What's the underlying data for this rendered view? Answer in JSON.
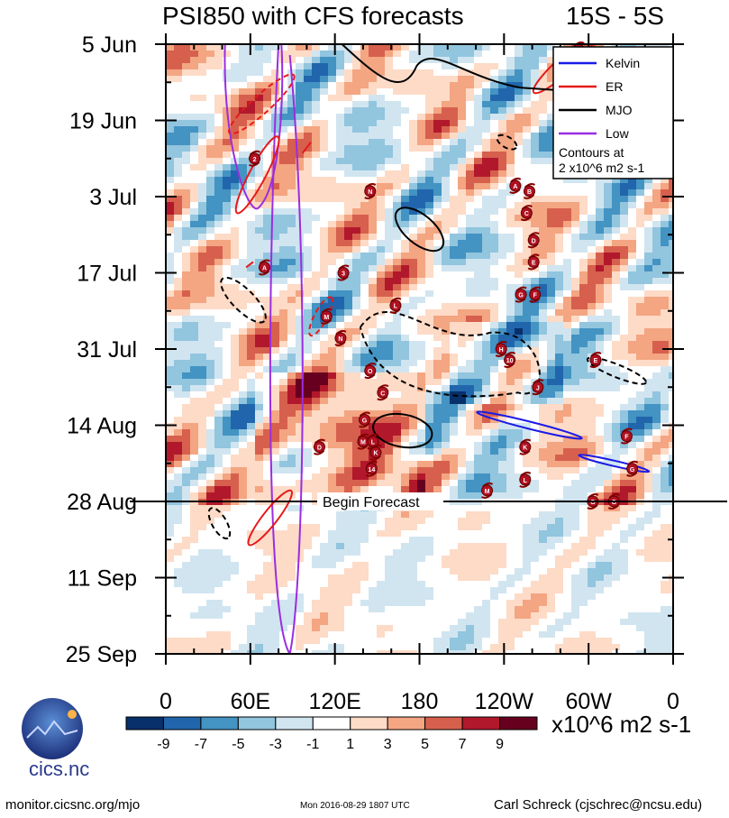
{
  "header": {
    "title": "PSI850 with CFS forecasts",
    "region": "15S - 5S"
  },
  "chart_data": {
    "type": "heatmap",
    "title": "PSI850 with CFS forecasts",
    "subtitle": "15S - 5S",
    "y_ticks": [
      "5 Jun",
      "19 Jun",
      "3 Jul",
      "17 Jul",
      "31 Jul",
      "14 Aug",
      "28 Aug",
      "11 Sep",
      "25 Sep"
    ],
    "y_days": [
      0,
      14,
      28,
      42,
      56,
      70,
      84,
      98,
      112
    ],
    "x_ticks": [
      "0",
      "60E",
      "120E",
      "180",
      "120W",
      "60W",
      "0"
    ],
    "x_lon": [
      0,
      60,
      120,
      180,
      240,
      300,
      360
    ],
    "colorbar": {
      "labels": [
        "-9",
        "-7",
        "-5",
        "-3",
        "-1",
        "1",
        "3",
        "5",
        "7",
        "9"
      ],
      "colors": [
        "#08306b",
        "#2166ac",
        "#4393c3",
        "#92c5de",
        "#d1e5f0",
        "#ffffff",
        "#fddbc7",
        "#f4a582",
        "#d6604d",
        "#b2182b",
        "#67001f"
      ],
      "units": "x10^6 m2 s-1"
    },
    "forecast_marker": {
      "label": "Begin Forecast",
      "day": 84
    },
    "legend": {
      "position": "top-right",
      "entries": [
        {
          "name": "Kelvin",
          "color": "#1a1ae6"
        },
        {
          "name": "ER",
          "color": "#e61a1a"
        },
        {
          "name": "MJO",
          "color": "#000000"
        },
        {
          "name": "Low",
          "color": "#9a2de0"
        }
      ],
      "note_line1": "Contours at",
      "note_line2": "2 x10^6 m2 s-1"
    },
    "storms": [
      {
        "l": "1",
        "lon": 293,
        "day": 1
      },
      {
        "l": "2",
        "lon": 63,
        "day": 21
      },
      {
        "l": "A",
        "lon": 70,
        "day": 41
      },
      {
        "l": "N",
        "lon": 145,
        "day": 27
      },
      {
        "l": "A",
        "lon": 248,
        "day": 26
      },
      {
        "l": "B",
        "lon": 258,
        "day": 27
      },
      {
        "l": "C",
        "lon": 256,
        "day": 31
      },
      {
        "l": "D",
        "lon": 261,
        "day": 36
      },
      {
        "l": "E",
        "lon": 261,
        "day": 40
      },
      {
        "l": "3",
        "lon": 126,
        "day": 42
      },
      {
        "l": "L",
        "lon": 163,
        "day": 48
      },
      {
        "l": "M",
        "lon": 114,
        "day": 50
      },
      {
        "l": "N",
        "lon": 124,
        "day": 54
      },
      {
        "l": "G",
        "lon": 252,
        "day": 46
      },
      {
        "l": "F",
        "lon": 262,
        "day": 46
      },
      {
        "l": "H",
        "lon": 238,
        "day": 56
      },
      {
        "l": "10",
        "lon": 244,
        "day": 58
      },
      {
        "l": "E",
        "lon": 305,
        "day": 58
      },
      {
        "l": "O",
        "lon": 145,
        "day": 60
      },
      {
        "l": "J",
        "lon": 264,
        "day": 63
      },
      {
        "l": "C",
        "lon": 154,
        "day": 64
      },
      {
        "l": "G",
        "lon": 141,
        "day": 69
      },
      {
        "l": "D",
        "lon": 109,
        "day": 74
      },
      {
        "l": "M",
        "lon": 140,
        "day": 73
      },
      {
        "l": "L",
        "lon": 147,
        "day": 73
      },
      {
        "l": "K",
        "lon": 149,
        "day": 75
      },
      {
        "l": "14",
        "lon": 146,
        "day": 78
      },
      {
        "l": "K",
        "lon": 255,
        "day": 74
      },
      {
        "l": "F",
        "lon": 327,
        "day": 72
      },
      {
        "l": "L",
        "lon": 255,
        "day": 80
      },
      {
        "l": "G",
        "lon": 331,
        "day": 78
      },
      {
        "l": "M",
        "lon": 228,
        "day": 82
      },
      {
        "l": "G",
        "lon": 303,
        "day": 84
      },
      {
        "l": "G",
        "lon": 318,
        "day": 84
      },
      {
        "l": "D",
        "lon": 293,
        "day": 14
      }
    ]
  },
  "logo": {
    "text": "cics.nc",
    "ring": "Cooperative Institute for Climate and Satellites"
  },
  "footer": {
    "left": "monitor.cicsnc.org/mjo",
    "center": "Mon 2016-08-29 1807 UTC",
    "right": "Carl Schreck (cjschrec@ncsu.edu)"
  }
}
